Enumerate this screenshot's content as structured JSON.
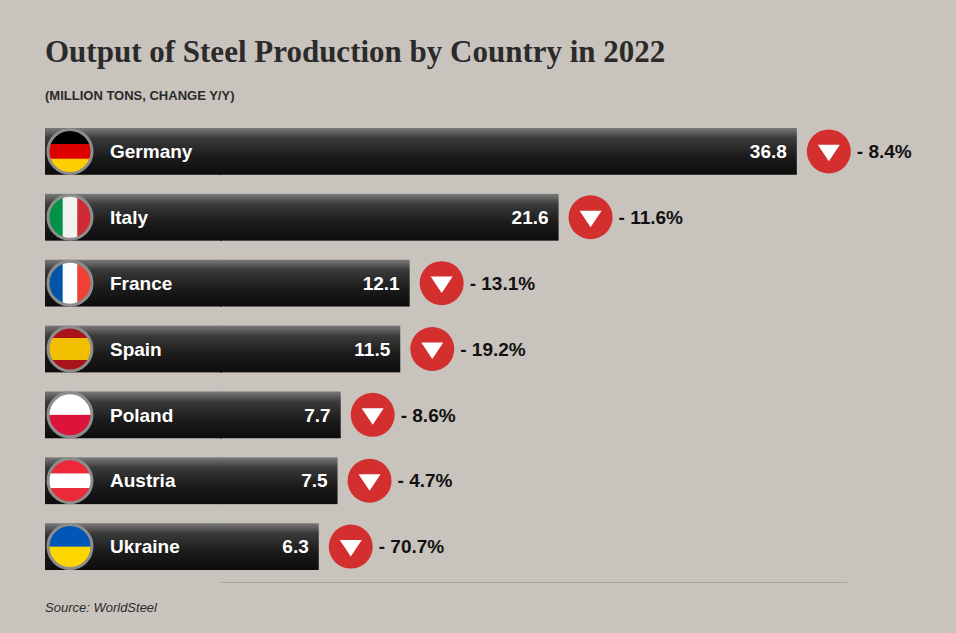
{
  "chart_data": {
    "type": "bar",
    "orientation": "horizontal",
    "title": "Output of Steel Production by Country in 2022",
    "subtitle": "(MILLION TONS, CHANGE Y/Y)",
    "categories": [
      "Germany",
      "Italy",
      "France",
      "Spain",
      "Poland",
      "Austria",
      "Ukraine"
    ],
    "values": [
      36.8,
      21.6,
      12.1,
      11.5,
      7.7,
      7.5,
      6.3
    ],
    "data_labels": true,
    "changes": [
      -8.4,
      -11.6,
      -13.1,
      -19.2,
      -8.6,
      -4.7,
      -70.7
    ],
    "change_labels": [
      "- 8.4%",
      "- 11.6%",
      "- 13.1%",
      "- 19.2%",
      "- 8.6%",
      "- 4.7%",
      "- 70.7%"
    ],
    "xlim": [
      0,
      40
    ],
    "tick_labels": false,
    "source": "Source: WorldSteel"
  }
}
